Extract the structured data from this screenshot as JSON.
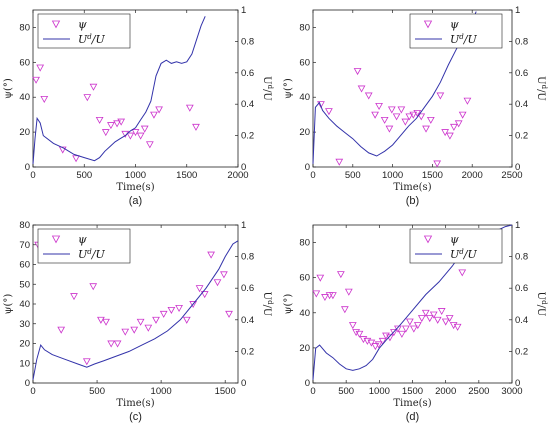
{
  "colors": {
    "scatter": "#cc33cc",
    "line": "#3333aa",
    "axis": "#222222"
  },
  "legend": {
    "marker_label": "ψ",
    "line_label": "U^d/U"
  },
  "chart_data": [
    {
      "id": "a",
      "type": "line",
      "caption": "(a)",
      "xlabel": "Time(s)",
      "ylabel_left": "ψ(°)",
      "ylabel_right": "U^d/U",
      "xlim": [
        0,
        2000
      ],
      "ylim_left": [
        0,
        90
      ],
      "ylim_right": [
        0,
        1
      ],
      "xticks": [
        0,
        500,
        1000,
        1500,
        2000
      ],
      "yticks_left": [
        0,
        20,
        40,
        60,
        80
      ],
      "yticks_right": [
        0,
        0.2,
        0.4,
        0.6,
        0.8,
        1
      ],
      "legend_position": "top-left",
      "series": [
        {
          "kind": "scatter",
          "axis": "left",
          "points": [
            [
              30,
              50
            ],
            [
              70,
              57
            ],
            [
              110,
              39
            ],
            [
              290,
              10
            ],
            [
              420,
              5
            ],
            [
              530,
              40
            ],
            [
              590,
              46
            ],
            [
              650,
              27
            ],
            [
              710,
              20
            ],
            [
              760,
              24
            ],
            [
              820,
              25
            ],
            [
              860,
              26
            ],
            [
              900,
              19
            ],
            [
              950,
              18
            ],
            [
              1000,
              20
            ],
            [
              1050,
              18
            ],
            [
              1090,
              22
            ],
            [
              1140,
              13
            ],
            [
              1180,
              30
            ],
            [
              1230,
              33
            ],
            [
              1530,
              34
            ],
            [
              1590,
              23
            ]
          ]
        },
        {
          "kind": "line",
          "axis": "right",
          "points": [
            [
              0,
              0.02
            ],
            [
              20,
              0.18
            ],
            [
              40,
              0.31
            ],
            [
              70,
              0.28
            ],
            [
              100,
              0.2
            ],
            [
              200,
              0.15
            ],
            [
              300,
              0.12
            ],
            [
              400,
              0.08
            ],
            [
              500,
              0.06
            ],
            [
              600,
              0.04
            ],
            [
              650,
              0.06
            ],
            [
              700,
              0.1
            ],
            [
              750,
              0.13
            ],
            [
              800,
              0.16
            ],
            [
              850,
              0.18
            ],
            [
              900,
              0.2
            ],
            [
              950,
              0.23
            ],
            [
              1000,
              0.25
            ],
            [
              1050,
              0.3
            ],
            [
              1100,
              0.35
            ],
            [
              1150,
              0.42
            ],
            [
              1200,
              0.58
            ],
            [
              1250,
              0.66
            ],
            [
              1300,
              0.68
            ],
            [
              1350,
              0.66
            ],
            [
              1400,
              0.67
            ],
            [
              1450,
              0.66
            ],
            [
              1500,
              0.67
            ],
            [
              1550,
              0.72
            ],
            [
              1600,
              0.82
            ],
            [
              1640,
              0.9
            ],
            [
              1680,
              0.96
            ]
          ]
        }
      ]
    },
    {
      "id": "b",
      "type": "line",
      "caption": "(b)",
      "xlabel": "Time(s)",
      "ylabel_left": "ψ(°)",
      "ylabel_right": "U^d/U",
      "xlim": [
        0,
        2500
      ],
      "ylim_left": [
        0,
        90
      ],
      "ylim_right": [
        0,
        1
      ],
      "xticks": [
        0,
        500,
        1000,
        1500,
        2000,
        2500
      ],
      "yticks_left": [
        0,
        20,
        40,
        60,
        80
      ],
      "yticks_right": [
        0,
        0.2,
        0.4,
        0.6,
        0.8,
        1
      ],
      "legend_position": "top-right",
      "series": [
        {
          "kind": "scatter",
          "axis": "left",
          "points": [
            [
              100,
              36
            ],
            [
              200,
              32
            ],
            [
              330,
              3
            ],
            [
              560,
              55
            ],
            [
              610,
              45
            ],
            [
              700,
              41
            ],
            [
              780,
              30
            ],
            [
              830,
              35
            ],
            [
              900,
              27
            ],
            [
              960,
              22
            ],
            [
              990,
              33
            ],
            [
              1050,
              29
            ],
            [
              1110,
              33
            ],
            [
              1160,
              26
            ],
            [
              1210,
              29
            ],
            [
              1260,
              30
            ],
            [
              1310,
              31
            ],
            [
              1360,
              29
            ],
            [
              1420,
              22
            ],
            [
              1480,
              27
            ],
            [
              1560,
              2
            ],
            [
              1600,
              41
            ],
            [
              1660,
              20
            ],
            [
              1720,
              18
            ],
            [
              1770,
              23
            ],
            [
              1830,
              25
            ],
            [
              1880,
              30
            ],
            [
              1940,
              38
            ]
          ]
        },
        {
          "kind": "line",
          "axis": "right",
          "points": [
            [
              0,
              0.02
            ],
            [
              30,
              0.38
            ],
            [
              80,
              0.41
            ],
            [
              120,
              0.36
            ],
            [
              200,
              0.31
            ],
            [
              300,
              0.26
            ],
            [
              400,
              0.22
            ],
            [
              500,
              0.18
            ],
            [
              600,
              0.13
            ],
            [
              700,
              0.09
            ],
            [
              800,
              0.07
            ],
            [
              900,
              0.1
            ],
            [
              1000,
              0.14
            ],
            [
              1100,
              0.2
            ],
            [
              1200,
              0.26
            ],
            [
              1300,
              0.31
            ],
            [
              1400,
              0.38
            ],
            [
              1500,
              0.45
            ],
            [
              1600,
              0.54
            ],
            [
              1700,
              0.65
            ],
            [
              1800,
              0.75
            ],
            [
              1900,
              0.85
            ],
            [
              2000,
              0.93
            ],
            [
              2050,
              0.99
            ]
          ]
        }
      ]
    },
    {
      "id": "c",
      "type": "line",
      "caption": "(c)",
      "xlabel": "Time(s)",
      "ylabel_left": "ψ(°)",
      "ylabel_right": "U^d/U",
      "xlim": [
        0,
        1600
      ],
      "ylim_left": [
        0,
        80
      ],
      "ylim_right": [
        0,
        1
      ],
      "xticks": [
        0,
        500,
        1000,
        1500
      ],
      "yticks_left": [
        0,
        10,
        20,
        30,
        40,
        50,
        60,
        70,
        80
      ],
      "yticks_right": [
        0,
        0.2,
        0.4,
        0.6,
        0.8,
        1
      ],
      "legend_position": "top-left",
      "series": [
        {
          "kind": "scatter",
          "axis": "left",
          "points": [
            [
              40,
              70
            ],
            [
              220,
              27
            ],
            [
              320,
              44
            ],
            [
              420,
              11
            ],
            [
              470,
              49
            ],
            [
              530,
              32
            ],
            [
              570,
              31
            ],
            [
              610,
              20
            ],
            [
              660,
              20
            ],
            [
              720,
              26
            ],
            [
              790,
              27
            ],
            [
              840,
              31
            ],
            [
              900,
              28
            ],
            [
              960,
              32
            ],
            [
              1020,
              35
            ],
            [
              1080,
              37
            ],
            [
              1140,
              38
            ],
            [
              1200,
              32
            ],
            [
              1250,
              40
            ],
            [
              1300,
              48
            ],
            [
              1340,
              45
            ],
            [
              1390,
              65
            ],
            [
              1440,
              51
            ],
            [
              1490,
              55
            ],
            [
              1530,
              35
            ]
          ]
        },
        {
          "kind": "line",
          "axis": "right",
          "points": [
            [
              0,
              0.02
            ],
            [
              30,
              0.15
            ],
            [
              60,
              0.24
            ],
            [
              90,
              0.21
            ],
            [
              150,
              0.18
            ],
            [
              250,
              0.15
            ],
            [
              350,
              0.12
            ],
            [
              420,
              0.1
            ],
            [
              480,
              0.12
            ],
            [
              550,
              0.14
            ],
            [
              650,
              0.17
            ],
            [
              750,
              0.2
            ],
            [
              850,
              0.24
            ],
            [
              950,
              0.28
            ],
            [
              1050,
              0.33
            ],
            [
              1150,
              0.4
            ],
            [
              1250,
              0.5
            ],
            [
              1350,
              0.6
            ],
            [
              1450,
              0.72
            ],
            [
              1500,
              0.8
            ],
            [
              1560,
              0.88
            ],
            [
              1600,
              0.9
            ]
          ]
        }
      ]
    },
    {
      "id": "d",
      "type": "line",
      "caption": "(d)",
      "xlabel": "Time(s)",
      "ylabel_left": "ψ(°)",
      "ylabel_right": "U^d/U",
      "xlim": [
        0,
        3000
      ],
      "ylim_left": [
        0,
        90
      ],
      "ylim_right": [
        0,
        1
      ],
      "xticks": [
        0,
        500,
        1000,
        1500,
        2000,
        2500,
        3000
      ],
      "yticks_left": [
        0,
        20,
        40,
        60,
        80
      ],
      "yticks_right": [
        0,
        0.2,
        0.4,
        0.6,
        0.8,
        1
      ],
      "legend_position": "top-right",
      "series": [
        {
          "kind": "scatter",
          "axis": "left",
          "points": [
            [
              50,
              51
            ],
            [
              110,
              60
            ],
            [
              180,
              49
            ],
            [
              250,
              50
            ],
            [
              300,
              50
            ],
            [
              420,
              62
            ],
            [
              480,
              42
            ],
            [
              540,
              52
            ],
            [
              600,
              33
            ],
            [
              650,
              29
            ],
            [
              700,
              28
            ],
            [
              760,
              25
            ],
            [
              820,
              24
            ],
            [
              880,
              23
            ],
            [
              940,
              21
            ],
            [
              990,
              22
            ],
            [
              1050,
              24
            ],
            [
              1100,
              27
            ],
            [
              1160,
              26
            ],
            [
              1220,
              29
            ],
            [
              1280,
              31
            ],
            [
              1340,
              28
            ],
            [
              1400,
              31
            ],
            [
              1460,
              35
            ],
            [
              1520,
              31
            ],
            [
              1580,
              33
            ],
            [
              1640,
              37
            ],
            [
              1700,
              40
            ],
            [
              1760,
              37
            ],
            [
              1820,
              39
            ],
            [
              1880,
              36
            ],
            [
              1940,
              41
            ],
            [
              2000,
              35
            ],
            [
              2060,
              37
            ],
            [
              2120,
              33
            ],
            [
              2180,
              32
            ],
            [
              2250,
              63
            ]
          ]
        },
        {
          "kind": "line",
          "axis": "right",
          "points": [
            [
              0,
              0.02
            ],
            [
              40,
              0.22
            ],
            [
              100,
              0.24
            ],
            [
              200,
              0.19
            ],
            [
              300,
              0.16
            ],
            [
              400,
              0.12
            ],
            [
              500,
              0.09
            ],
            [
              600,
              0.08
            ],
            [
              700,
              0.09
            ],
            [
              800,
              0.11
            ],
            [
              900,
              0.15
            ],
            [
              1000,
              0.22
            ],
            [
              1100,
              0.27
            ],
            [
              1300,
              0.36
            ],
            [
              1500,
              0.46
            ],
            [
              1700,
              0.56
            ],
            [
              1900,
              0.64
            ],
            [
              2100,
              0.74
            ],
            [
              2200,
              0.8
            ],
            [
              2300,
              0.88
            ],
            [
              2400,
              0.92
            ],
            [
              2500,
              0.96
            ],
            [
              2600,
              0.97
            ],
            [
              2700,
              0.97
            ],
            [
              2800,
              0.97
            ],
            [
              2900,
              0.99
            ],
            [
              3000,
              1.0
            ]
          ]
        }
      ]
    }
  ]
}
